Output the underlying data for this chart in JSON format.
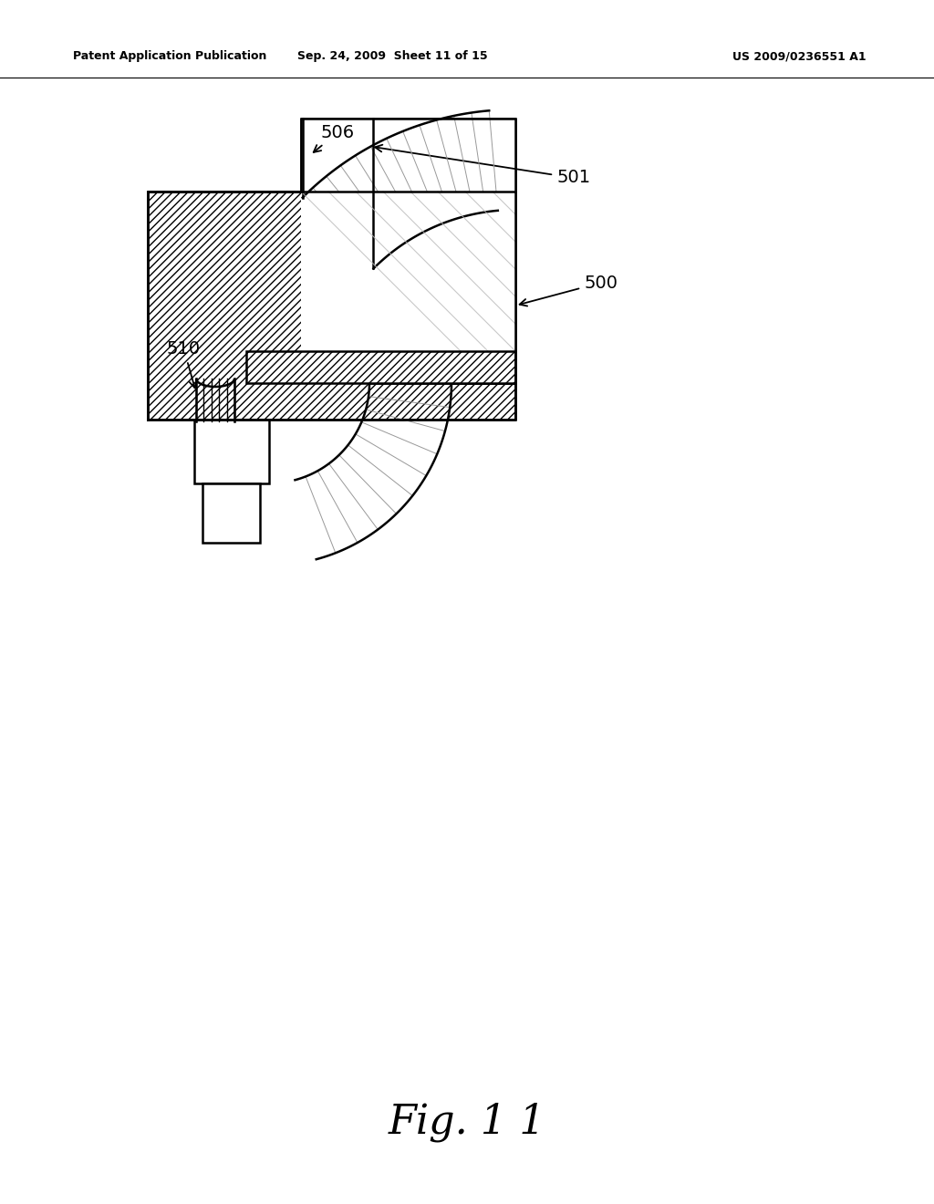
{
  "title_left": "Patent Application Publication",
  "title_mid": "Sep. 24, 2009  Sheet 11 of 15",
  "title_right": "US 2009/0236551 A1",
  "fig_label": "Fig. 1 1",
  "bg_color": "#ffffff",
  "line_color": "#000000"
}
